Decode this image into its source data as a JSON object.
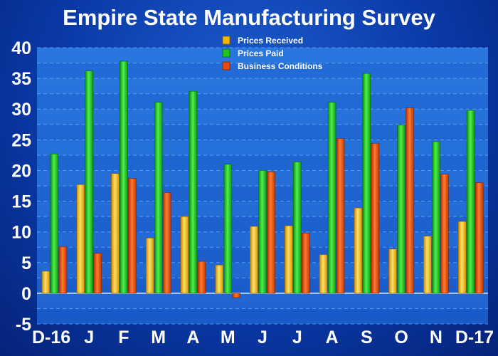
{
  "chart_data": {
    "type": "bar",
    "title": "Empire State Manufacturing Survey",
    "xlabel": "",
    "ylabel": "",
    "categories": [
      "D-16",
      "J",
      "F",
      "M",
      "A",
      "M",
      "J",
      "J",
      "A",
      "S",
      "O",
      "N",
      "D-17"
    ],
    "series": [
      {
        "name": "Prices Received",
        "color": "#f5b800",
        "values": [
          3.6,
          17.7,
          19.5,
          9.0,
          12.5,
          4.6,
          10.9,
          11.0,
          6.3,
          13.9,
          7.2,
          9.3,
          11.7
        ]
      },
      {
        "name": "Prices Paid",
        "color": "#1fc51f",
        "values": [
          22.7,
          36.2,
          37.8,
          31.1,
          32.9,
          21.0,
          20.0,
          21.4,
          31.1,
          35.8,
          27.4,
          24.7,
          29.8
        ]
      },
      {
        "name": "Business Conditions",
        "color": "#e84a10",
        "values": [
          7.6,
          6.5,
          18.7,
          16.4,
          5.2,
          -0.7,
          19.8,
          9.8,
          25.2,
          24.4,
          30.2,
          19.4,
          18.0
        ]
      }
    ],
    "ylim": [
      -5,
      40
    ],
    "yticks": [
      40,
      35,
      30,
      25,
      20,
      15,
      10,
      5,
      0,
      -5
    ],
    "grid": true,
    "legend_position": "top-center"
  }
}
